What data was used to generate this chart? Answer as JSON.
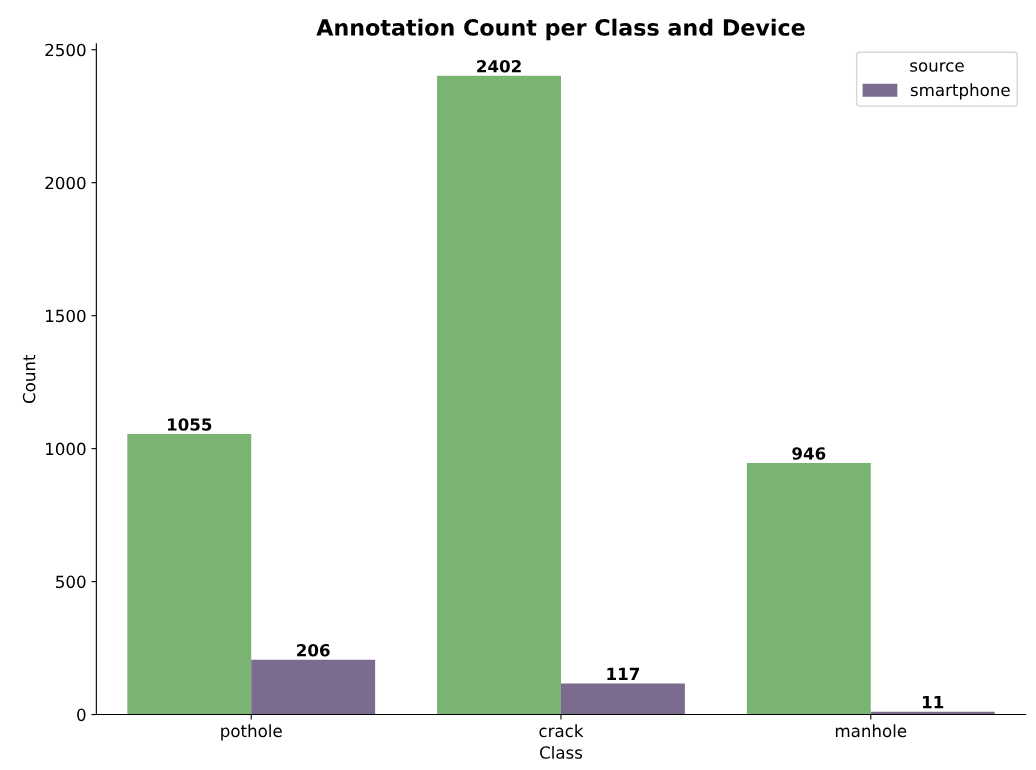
{
  "chart_data": {
    "type": "bar",
    "title": "Annotation Count per Class and Device",
    "xlabel": "Class",
    "ylabel": "Count",
    "categories": [
      "pothole",
      "crack",
      "manhole"
    ],
    "series": [
      {
        "color": "#7ab472",
        "values": [
          1055,
          2402,
          946
        ]
      },
      {
        "name": "smartphone",
        "color": "#7b6b8f",
        "values": [
          206,
          117,
          11
        ]
      }
    ],
    "ylim": [
      0,
      2522
    ],
    "yticks": [
      0,
      500,
      1000,
      1500,
      2000,
      2500
    ],
    "grid": false,
    "legend": "top right",
    "legend_title": "source",
    "data_labels": true
  }
}
